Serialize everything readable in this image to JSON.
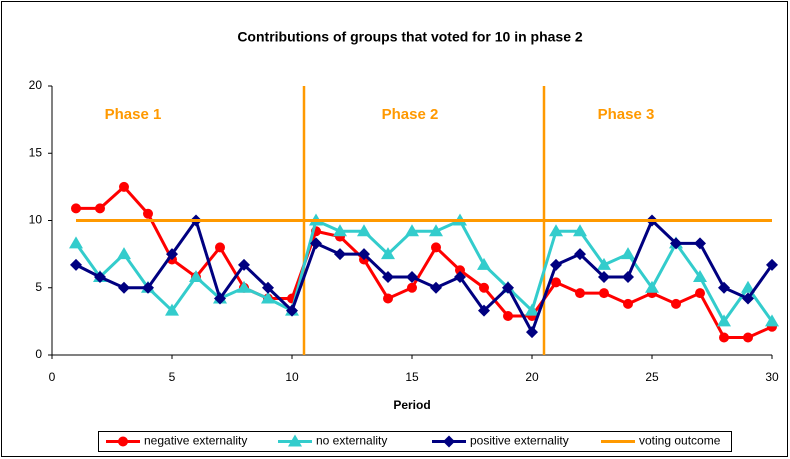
{
  "chart_data": {
    "type": "line",
    "title": "Contributions of groups that voted for 10 in phase 2",
    "x_label": "Period",
    "annotations": [
      "Phase 1",
      "Phase 2",
      "Phase 3"
    ],
    "phase_boundaries": [
      10.5,
      20.5
    ],
    "boundary_color": "#ff9900",
    "x": [
      1,
      2,
      3,
      4,
      5,
      6,
      7,
      8,
      9,
      10,
      11,
      12,
      13,
      14,
      15,
      16,
      17,
      18,
      19,
      20,
      21,
      22,
      23,
      24,
      25,
      26,
      27,
      28,
      29,
      30
    ],
    "series": [
      {
        "name": "negative externality",
        "color": "#ff0000",
        "marker": "circle",
        "values": [
          10.9,
          10.9,
          12.5,
          10.5,
          7.1,
          5.8,
          8.0,
          5.0,
          4.2,
          4.2,
          9.2,
          8.8,
          7.1,
          4.2,
          5.0,
          8.0,
          6.3,
          5.0,
          2.9,
          2.9,
          5.4,
          4.6,
          4.6,
          3.8,
          4.6,
          3.8,
          4.6,
          1.3,
          1.3,
          2.1
        ]
      },
      {
        "name": "no externality",
        "color": "#33cccc",
        "marker": "triangle",
        "values": [
          8.3,
          5.8,
          7.5,
          5.0,
          3.3,
          5.8,
          4.2,
          5.0,
          4.2,
          3.3,
          10.0,
          9.2,
          9.2,
          7.5,
          9.2,
          9.2,
          10.0,
          6.7,
          5.0,
          3.3,
          9.2,
          9.2,
          6.7,
          7.5,
          5.0,
          8.3,
          5.8,
          2.5,
          5.0,
          2.5
        ]
      },
      {
        "name": "positive externality",
        "color": "#000080",
        "marker": "diamond",
        "values": [
          6.7,
          5.8,
          5.0,
          5.0,
          7.5,
          10.0,
          4.2,
          6.7,
          5.0,
          3.3,
          8.3,
          7.5,
          7.5,
          5.8,
          5.8,
          5.0,
          5.8,
          3.3,
          5.0,
          1.7,
          6.7,
          7.5,
          5.8,
          5.8,
          10.0,
          8.3,
          8.3,
          5.0,
          4.2,
          6.7
        ]
      },
      {
        "name": "voting outcome",
        "color": "#ff9900",
        "marker": "none",
        "values": [
          10,
          10,
          10,
          10,
          10,
          10,
          10,
          10,
          10,
          10,
          10,
          10,
          10,
          10,
          10,
          10,
          10,
          10,
          10,
          10,
          10,
          10,
          10,
          10,
          10,
          10,
          10,
          10,
          10,
          10
        ]
      }
    ],
    "xlim": [
      0,
      30
    ],
    "xticks": [
      0,
      5,
      10,
      15,
      20,
      25,
      30
    ],
    "ylim": [
      0,
      20
    ],
    "yticks": [
      0,
      5,
      10,
      15,
      20
    ],
    "grid": false,
    "legend": "bottom"
  }
}
